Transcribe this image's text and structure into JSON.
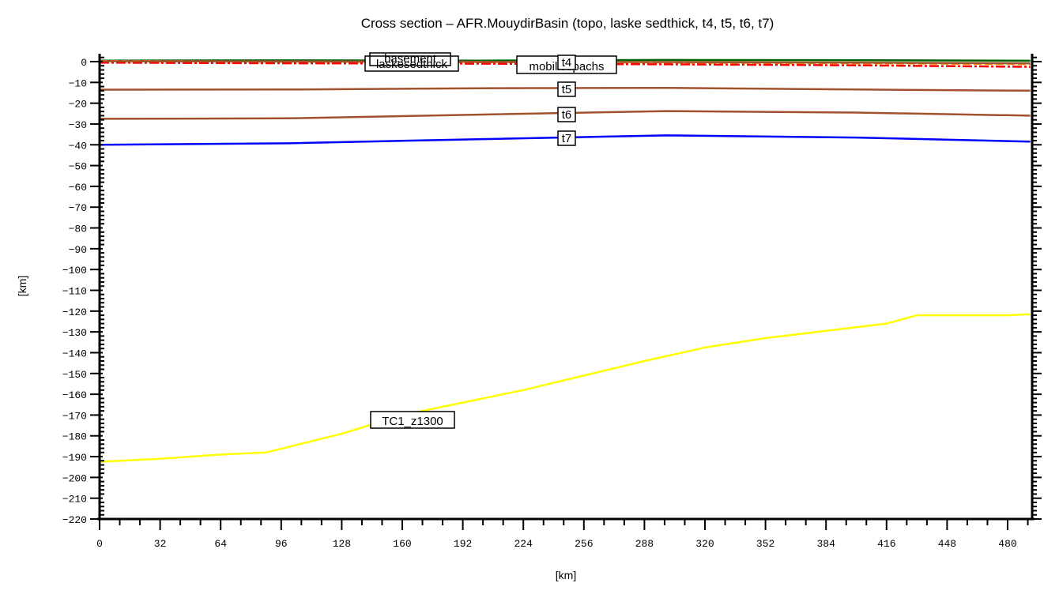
{
  "chart_data": {
    "type": "line",
    "title": "Cross section – AFR.MouydirBasin (topo, laske sedthick, t4, t5, t6, t7)",
    "xlabel": "[km]",
    "ylabel": "[km]",
    "xlim": [
      0,
      492
    ],
    "ylim": [
      -220,
      4
    ],
    "x_ticks": [
      0,
      32,
      64,
      96,
      128,
      160,
      192,
      224,
      256,
      288,
      320,
      352,
      384,
      416,
      448,
      480
    ],
    "y_ticks": [
      0,
      -10,
      -20,
      -30,
      -40,
      -50,
      -60,
      -70,
      -80,
      -90,
      -100,
      -110,
      -120,
      -130,
      -140,
      -150,
      -160,
      -170,
      -180,
      -190,
      -200,
      -210,
      -220
    ],
    "grid": false,
    "legend": "inline labels",
    "series": [
      {
        "name": "topo",
        "color": "#006400",
        "style": "solid",
        "x": [
          0,
          100,
          200,
          300,
          400,
          492
        ],
        "values": [
          0.5,
          0.6,
          0.5,
          0.8,
          0.7,
          0.4
        ]
      },
      {
        "name": "laske sedthick",
        "color": "#ff8c00",
        "style": "dashed",
        "x": [
          0,
          100,
          200,
          300,
          400,
          492
        ],
        "values": [
          0.3,
          0.0,
          -0.3,
          -0.5,
          -0.8,
          -1.2
        ]
      },
      {
        "name": "mobilisopachs",
        "color": "#ff0000",
        "style": "dashdot",
        "x": [
          0,
          100,
          200,
          300,
          400,
          492
        ],
        "values": [
          -0.5,
          -0.8,
          -1.0,
          -1.3,
          -1.8,
          -2.5
        ]
      },
      {
        "name": "t4",
        "color": "#a0522d",
        "style": "solid",
        "x": [
          0,
          100,
          200,
          300,
          400,
          492
        ],
        "values": [
          0.2,
          0.1,
          -0.1,
          -0.2,
          -0.5,
          -0.8
        ]
      },
      {
        "name": "t5",
        "color": "#a0522d",
        "style": "solid",
        "x": [
          0,
          100,
          200,
          300,
          400,
          492
        ],
        "values": [
          -13.5,
          -13.4,
          -12.8,
          -12.6,
          -13.4,
          -14.0
        ]
      },
      {
        "name": "t6",
        "color": "#a0522d",
        "style": "solid",
        "x": [
          0,
          100,
          200,
          300,
          400,
          492
        ],
        "values": [
          -27.5,
          -27.3,
          -25.5,
          -23.8,
          -24.5,
          -26.0
        ]
      },
      {
        "name": "t7",
        "color": "#0000ff",
        "style": "solid",
        "x": [
          0,
          100,
          200,
          300,
          400,
          492
        ],
        "values": [
          -40.0,
          -39.3,
          -37.3,
          -35.5,
          -36.5,
          -38.5
        ]
      },
      {
        "name": "TC1_z1300",
        "color": "#ffff00",
        "style": "solid",
        "x": [
          0,
          32,
          64,
          88,
          128,
          160,
          192,
          224,
          256,
          288,
          320,
          352,
          384,
          416,
          432,
          480,
          492
        ],
        "values": [
          -192.5,
          -191,
          -189,
          -188,
          -179,
          -170,
          -164,
          -158,
          -151,
          -144,
          -137.5,
          -133,
          -129.5,
          -126,
          -122,
          -122,
          -121.5
        ]
      }
    ],
    "annotations": [
      {
        "text": "laskesedthick",
        "x": 155,
        "y": -1
      },
      {
        "text": "basement",
        "x": 160,
        "y": 0
      },
      {
        "text": "mobilisopachs",
        "x": 245,
        "y": -3
      },
      {
        "text": "t4",
        "x": 245,
        "y": 0
      },
      {
        "text": "t5",
        "x": 245,
        "y": -13
      },
      {
        "text": "t6",
        "x": 245,
        "y": -25
      },
      {
        "text": "t7",
        "x": 245,
        "y": -37
      },
      {
        "text": "TC1_z1300",
        "x": 165,
        "y": -173
      }
    ]
  }
}
